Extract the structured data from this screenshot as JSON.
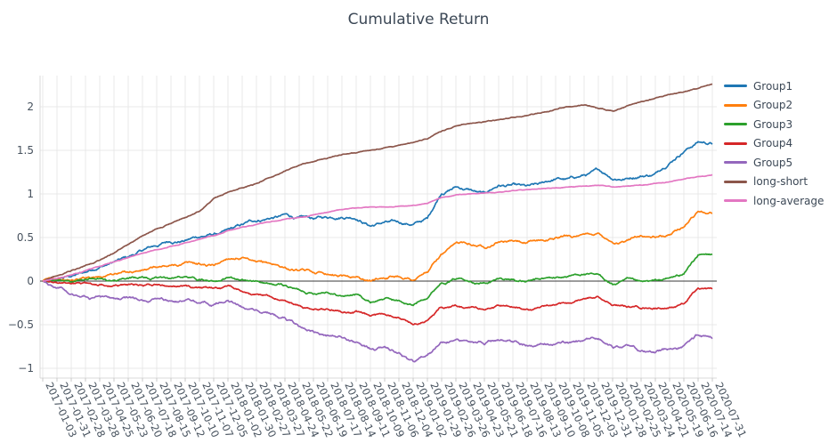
{
  "title": "Cumulative Return",
  "style": {
    "background": "#ffffff",
    "title_color": "#3c4856",
    "axis_text_color": "#47525e",
    "grid_color": "#e9e9e9",
    "axis_line_color": "#d8d8d8",
    "tick_mark_color": "#c9c9c9",
    "zero_line_color": "#3a3a3a"
  },
  "chart_data": {
    "type": "line",
    "title": "Cumulative Return",
    "xlabel": "",
    "ylabel": "",
    "grid": true,
    "legend_position": "right",
    "zero_line": true,
    "ylim": [
      -1.1,
      2.36
    ],
    "yticks": [
      {
        "value": 2,
        "label": "2"
      },
      {
        "value": 1.5,
        "label": "1.5"
      },
      {
        "value": 1,
        "label": "1"
      },
      {
        "value": 0.5,
        "label": "0.5"
      },
      {
        "value": 0,
        "label": "0"
      },
      {
        "value": -0.5,
        "label": "−0.5"
      },
      {
        "value": -1,
        "label": "−1"
      }
    ],
    "x": [
      "2017-01-03",
      "2017-01-31",
      "2017-02-28",
      "2017-03-28",
      "2017-04-25",
      "2017-05-23",
      "2017-06-20",
      "2017-07-18",
      "2017-08-15",
      "2017-09-12",
      "2017-10-10",
      "2017-11-07",
      "2017-12-05",
      "2018-01-02",
      "2018-01-30",
      "2018-02-27",
      "2018-03-27",
      "2018-04-24",
      "2018-05-22",
      "2018-06-19",
      "2018-07-17",
      "2018-08-14",
      "2018-09-11",
      "2018-10-09",
      "2018-11-06",
      "2018-12-04",
      "2019-01-02",
      "2019-01-29",
      "2019-02-26",
      "2019-03-26",
      "2019-04-23",
      "2019-05-21",
      "2019-06-18",
      "2019-07-16",
      "2019-08-13",
      "2019-09-10",
      "2019-10-08",
      "2019-11-05",
      "2019-12-03",
      "2019-12-31",
      "2020-01-28",
      "2020-02-25",
      "2020-03-24",
      "2020-04-21",
      "2020-05-19",
      "2020-06-16",
      "2020-07-14",
      "2020-07-31"
    ],
    "series": [
      {
        "name": "Group1",
        "color": "#1f77b4",
        "values": [
          0,
          0.02,
          0.05,
          0.1,
          0.16,
          0.22,
          0.28,
          0.35,
          0.4,
          0.44,
          0.47,
          0.5,
          0.54,
          0.6,
          0.65,
          0.68,
          0.72,
          0.77,
          0.74,
          0.71,
          0.72,
          0.73,
          0.7,
          0.63,
          0.68,
          0.67,
          0.65,
          0.72,
          1.0,
          1.08,
          1.05,
          1.02,
          1.1,
          1.12,
          1.1,
          1.13,
          1.17,
          1.19,
          1.22,
          1.28,
          1.16,
          1.18,
          1.2,
          1.24,
          1.35,
          1.48,
          1.6,
          1.57
        ]
      },
      {
        "name": "Group2",
        "color": "#ff7f0e",
        "values": [
          0,
          0.02,
          0.01,
          0.03,
          0.05,
          0.08,
          0.1,
          0.13,
          0.16,
          0.18,
          0.22,
          0.2,
          0.18,
          0.25,
          0.27,
          0.22,
          0.2,
          0.16,
          0.12,
          0.1,
          0.08,
          0.06,
          0.05,
          0.0,
          0.03,
          0.05,
          0.01,
          0.1,
          0.31,
          0.44,
          0.42,
          0.38,
          0.45,
          0.46,
          0.44,
          0.47,
          0.5,
          0.52,
          0.54,
          0.55,
          0.44,
          0.47,
          0.52,
          0.5,
          0.53,
          0.62,
          0.8,
          0.78
        ]
      },
      {
        "name": "Group3",
        "color": "#2ca02c",
        "values": [
          0,
          0.01,
          -0.01,
          0.02,
          0.03,
          0.01,
          0.03,
          0.05,
          0.04,
          0.03,
          0.05,
          0.02,
          0.0,
          0.04,
          0.02,
          0.0,
          -0.03,
          -0.05,
          -0.1,
          -0.15,
          -0.13,
          -0.17,
          -0.15,
          -0.25,
          -0.2,
          -0.22,
          -0.28,
          -0.2,
          -0.02,
          0.02,
          0.0,
          -0.02,
          0.03,
          0.02,
          0.0,
          0.03,
          0.04,
          0.06,
          0.08,
          0.08,
          -0.04,
          0.04,
          0.0,
          0.02,
          0.04,
          0.08,
          0.3,
          0.31
        ]
      },
      {
        "name": "Group4",
        "color": "#d62728",
        "values": [
          0,
          -0.02,
          -0.03,
          -0.02,
          -0.04,
          -0.05,
          -0.04,
          -0.05,
          -0.04,
          -0.06,
          -0.05,
          -0.07,
          -0.08,
          -0.05,
          -0.12,
          -0.15,
          -0.18,
          -0.22,
          -0.28,
          -0.33,
          -0.32,
          -0.36,
          -0.34,
          -0.4,
          -0.38,
          -0.42,
          -0.5,
          -0.45,
          -0.3,
          -0.28,
          -0.3,
          -0.33,
          -0.28,
          -0.3,
          -0.32,
          -0.29,
          -0.27,
          -0.25,
          -0.2,
          -0.18,
          -0.28,
          -0.3,
          -0.32,
          -0.31,
          -0.3,
          -0.26,
          -0.08,
          -0.09
        ]
      },
      {
        "name": "Group5",
        "color": "#9467bd",
        "values": [
          0,
          -0.08,
          -0.15,
          -0.18,
          -0.17,
          -0.2,
          -0.19,
          -0.22,
          -0.2,
          -0.23,
          -0.22,
          -0.25,
          -0.27,
          -0.22,
          -0.3,
          -0.33,
          -0.38,
          -0.42,
          -0.52,
          -0.58,
          -0.62,
          -0.65,
          -0.7,
          -0.78,
          -0.75,
          -0.82,
          -0.92,
          -0.85,
          -0.7,
          -0.67,
          -0.7,
          -0.73,
          -0.68,
          -0.7,
          -0.74,
          -0.72,
          -0.72,
          -0.7,
          -0.68,
          -0.66,
          -0.76,
          -0.73,
          -0.8,
          -0.82,
          -0.78,
          -0.74,
          -0.62,
          -0.66
        ]
      },
      {
        "name": "long-short",
        "color": "#8c564b",
        "values": [
          0,
          0.06,
          0.12,
          0.18,
          0.24,
          0.32,
          0.42,
          0.52,
          0.6,
          0.66,
          0.73,
          0.8,
          0.95,
          1.02,
          1.07,
          1.12,
          1.19,
          1.26,
          1.33,
          1.37,
          1.41,
          1.45,
          1.47,
          1.5,
          1.53,
          1.56,
          1.59,
          1.63,
          1.72,
          1.78,
          1.81,
          1.83,
          1.85,
          1.88,
          1.9,
          1.93,
          1.97,
          2.0,
          2.02,
          1.98,
          1.95,
          2.01,
          2.06,
          2.1,
          2.14,
          2.17,
          2.21,
          2.26
        ]
      },
      {
        "name": "long-average",
        "color": "#e377c2",
        "values": [
          0,
          0.03,
          0.07,
          0.12,
          0.17,
          0.22,
          0.27,
          0.32,
          0.36,
          0.4,
          0.44,
          0.48,
          0.52,
          0.58,
          0.62,
          0.65,
          0.68,
          0.71,
          0.73,
          0.76,
          0.79,
          0.82,
          0.84,
          0.85,
          0.85,
          0.86,
          0.87,
          0.89,
          0.96,
          0.99,
          1.0,
          1.01,
          1.02,
          1.04,
          1.05,
          1.06,
          1.07,
          1.08,
          1.09,
          1.1,
          1.08,
          1.09,
          1.1,
          1.12,
          1.14,
          1.17,
          1.2,
          1.22
        ]
      }
    ]
  }
}
